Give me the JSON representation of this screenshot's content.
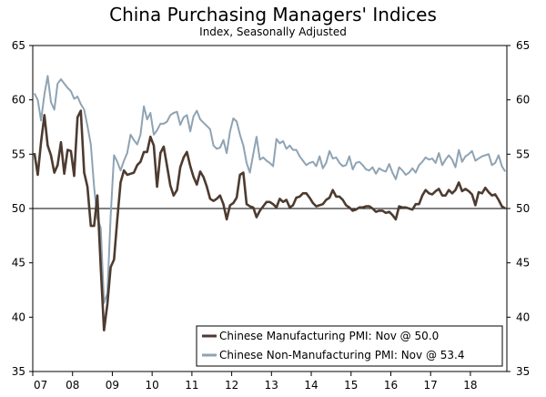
{
  "chart_data": {
    "type": "line",
    "title": "China Purchasing Managers' Indices",
    "subtitle": "Index, Seasonally Adjusted",
    "ylim": [
      35,
      65
    ],
    "yticks": [
      35,
      40,
      45,
      50,
      55,
      60,
      65
    ],
    "xticks": [
      "07",
      "08",
      "09",
      "10",
      "11",
      "12",
      "13",
      "14",
      "15",
      "16",
      "17",
      "18"
    ],
    "x_start": "2007-01",
    "x_end": "2018-11",
    "reference_line": 50,
    "grid": false,
    "legend_position": "bottom-right",
    "series": [
      {
        "name": "Chinese Manufacturing PMI: Nov @ 50.0",
        "color": "#4d3b30",
        "values": [
          55.1,
          53.1,
          56.1,
          58.6,
          55.8,
          54.9,
          53.3,
          54.0,
          56.1,
          53.2,
          55.4,
          55.3,
          53.0,
          58.4,
          59.0,
          53.3,
          52.0,
          48.4,
          48.4,
          51.2,
          44.6,
          38.8,
          41.2,
          44.6,
          45.3,
          49.0,
          52.4,
          53.5,
          53.1,
          53.2,
          53.3,
          54.0,
          54.3,
          55.2,
          55.2,
          56.6,
          55.8,
          52.0,
          55.1,
          55.7,
          53.9,
          52.1,
          51.2,
          51.7,
          53.8,
          54.7,
          55.2,
          53.9,
          52.9,
          52.2,
          53.4,
          52.9,
          52.0,
          50.9,
          50.7,
          50.9,
          51.2,
          50.4,
          49.0,
          50.3,
          50.5,
          51.0,
          53.1,
          53.3,
          50.4,
          50.2,
          50.1,
          49.2,
          49.8,
          50.2,
          50.6,
          50.6,
          50.4,
          50.1,
          50.9,
          50.6,
          50.8,
          50.1,
          50.3,
          51.0,
          51.1,
          51.4,
          51.4,
          51.0,
          50.5,
          50.2,
          50.3,
          50.4,
          50.8,
          51.0,
          51.7,
          51.1,
          51.1,
          50.8,
          50.3,
          50.1,
          49.8,
          49.9,
          50.1,
          50.1,
          50.2,
          50.2,
          50.0,
          49.7,
          49.8,
          49.8,
          49.6,
          49.7,
          49.4,
          49.0,
          50.2,
          50.1,
          50.1,
          50.0,
          49.9,
          50.4,
          50.4,
          51.2,
          51.7,
          51.4,
          51.3,
          51.6,
          51.8,
          51.2,
          51.2,
          51.7,
          51.4,
          51.7,
          52.4,
          51.6,
          51.8,
          51.6,
          51.3,
          50.3,
          51.5,
          51.4,
          51.9,
          51.5,
          51.2,
          51.3,
          50.8,
          50.2,
          50.0
        ]
      },
      {
        "name": "Chinese Non-Manufacturing PMI: Nov @ 53.4",
        "color": "#8fa3b3",
        "values": [
          60.6,
          60.0,
          58.1,
          60.5,
          62.2,
          59.8,
          59.1,
          61.5,
          61.9,
          61.5,
          61.1,
          60.8,
          60.1,
          60.3,
          59.6,
          59.1,
          57.6,
          55.9,
          52.0,
          49.1,
          48.2,
          41.3,
          42.2,
          49.3,
          54.9,
          54.3,
          53.5,
          54.4,
          55.1,
          56.8,
          56.3,
          55.9,
          56.8,
          59.4,
          58.2,
          58.8,
          56.8,
          57.2,
          57.8,
          57.8,
          58.0,
          58.6,
          58.8,
          58.9,
          57.7,
          58.4,
          58.6,
          57.1,
          58.5,
          59.0,
          58.2,
          57.9,
          57.6,
          57.3,
          55.8,
          55.5,
          55.6,
          56.3,
          55.1,
          57.1,
          58.3,
          58.0,
          56.8,
          55.8,
          54.2,
          53.3,
          55.0,
          56.6,
          54.5,
          54.7,
          54.4,
          54.2,
          53.9,
          56.4,
          56.0,
          56.2,
          55.5,
          55.8,
          55.4,
          55.4,
          54.8,
          54.4,
          54.0,
          54.2,
          54.3,
          53.9,
          54.8,
          53.7,
          54.2,
          55.3,
          54.6,
          54.7,
          54.2,
          53.9,
          54.0,
          54.8,
          53.6,
          54.2,
          54.3,
          54.0,
          53.6,
          53.5,
          53.8,
          53.2,
          53.7,
          53.5,
          53.4,
          54.1,
          53.3,
          52.7,
          53.8,
          53.5,
          53.1,
          53.3,
          53.7,
          53.3,
          54.0,
          54.3,
          54.7,
          54.5,
          54.6,
          54.2,
          55.1,
          54.0,
          54.5,
          54.9,
          54.5,
          53.8,
          55.4,
          54.3,
          54.8,
          55.0,
          55.3,
          54.4,
          54.6,
          54.8,
          54.9,
          55.0,
          54.0,
          54.2,
          54.9,
          53.9,
          53.4
        ]
      }
    ]
  }
}
